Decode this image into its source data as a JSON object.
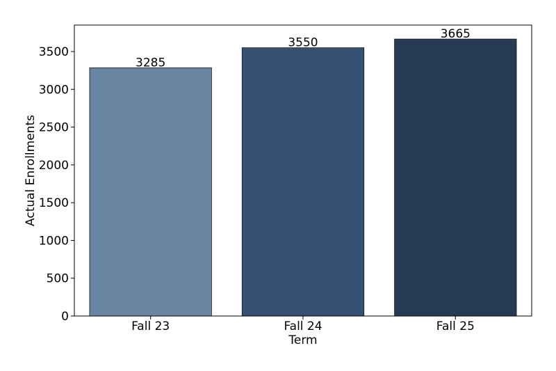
{
  "chart_data": {
    "type": "bar",
    "title": "",
    "xlabel": "Term",
    "ylabel": "Actual Enrollments",
    "categories": [
      "Fall 23",
      "Fall 24",
      "Fall 25"
    ],
    "values": [
      3285,
      3550,
      3665
    ],
    "data_labels": [
      "3285",
      "3550",
      "3665"
    ],
    "bar_colors": [
      "#6886a2",
      "#345174",
      "#283b54"
    ],
    "ylim": [
      0,
      3850
    ],
    "yticks": [
      0,
      500,
      1000,
      1500,
      2000,
      2500,
      3000,
      3500
    ],
    "grid": false,
    "legend": "none"
  }
}
